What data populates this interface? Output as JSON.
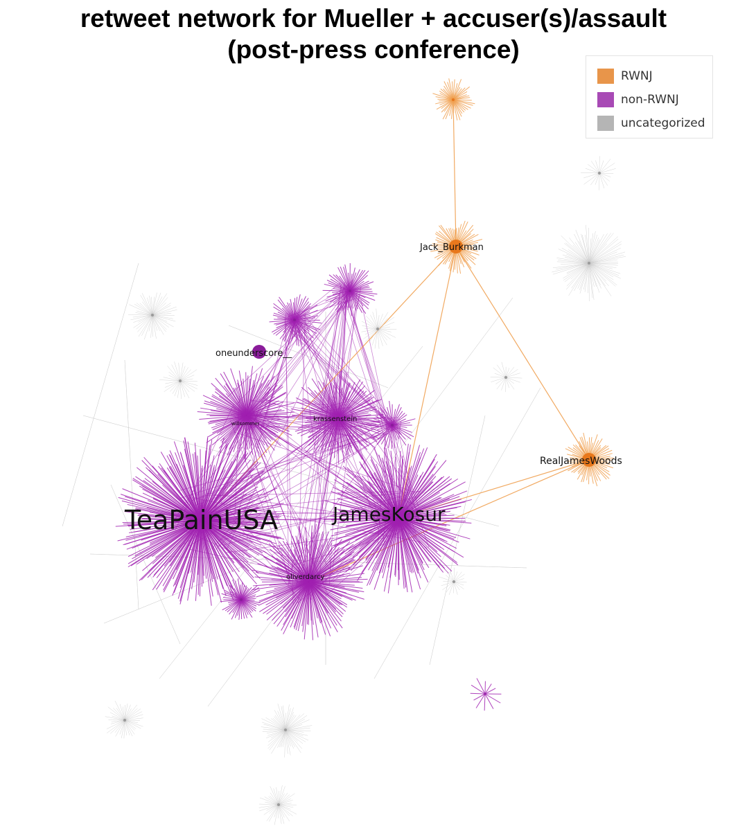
{
  "title": {
    "line1": "retweet network for Mueller + accuser(s)/assault",
    "line2": "(post-press conference)"
  },
  "legend": [
    {
      "label": "RWNJ",
      "color": "#e8954a"
    },
    {
      "label": "non-RWNJ",
      "color": "#a84ab5"
    },
    {
      "label": "uncategorized",
      "color": "#b5b5b5"
    }
  ],
  "colors": {
    "rwnj_edge": "#f0a050",
    "rwnj_node": "#e8781c",
    "nonrwnj_edge": "#a020b0",
    "nonrwnj_node": "#8a1c9a",
    "uncat_edge": "#c8c8c8",
    "uncat_node": "#9a9a9a"
  },
  "hubs": [
    {
      "id": "TeaPainUSA",
      "label": "TeaPainUSA",
      "group": "non-RWNJ"
    },
    {
      "id": "JamesKosur",
      "label": "JamesKosur",
      "group": "non-RWNJ"
    },
    {
      "id": "oliverdarcy",
      "label": "oliverdarcy",
      "group": "non-RWNJ"
    },
    {
      "id": "krassenstein",
      "label": "krassenstein",
      "group": "non-RWNJ"
    },
    {
      "id": "willsommer",
      "label": "willsommer",
      "group": "non-RWNJ"
    },
    {
      "id": "oneunderscore__",
      "label": "oneunderscore__",
      "group": "non-RWNJ"
    },
    {
      "id": "Jack_Burkman",
      "label": "Jack_Burkman",
      "group": "RWNJ"
    },
    {
      "id": "RealJamesWoods",
      "label": "RealJamesWoods",
      "group": "RWNJ"
    },
    {
      "id": "top_rwnj",
      "label": "",
      "group": "RWNJ"
    },
    {
      "id": "small_purple_1",
      "label": "",
      "group": "non-RWNJ"
    },
    {
      "id": "small_purple_2",
      "label": "",
      "group": "non-RWNJ"
    },
    {
      "id": "small_purple_3",
      "label": "",
      "group": "non-RWNJ"
    },
    {
      "id": "small_purple_4",
      "label": "",
      "group": "non-RWNJ"
    },
    {
      "id": "small_purple_5",
      "label": "",
      "group": "non-RWNJ"
    },
    {
      "id": "gray_1",
      "label": "",
      "group": "uncategorized"
    },
    {
      "id": "gray_2",
      "label": "",
      "group": "uncategorized"
    },
    {
      "id": "gray_3",
      "label": "",
      "group": "uncategorized"
    },
    {
      "id": "gray_4",
      "label": "",
      "group": "uncategorized"
    },
    {
      "id": "gray_5",
      "label": "",
      "group": "uncategorized"
    },
    {
      "id": "gray_6",
      "label": "",
      "group": "uncategorized"
    },
    {
      "id": "gray_7",
      "label": "",
      "group": "uncategorized"
    },
    {
      "id": "gray_8",
      "label": "",
      "group": "uncategorized"
    },
    {
      "id": "gray_9",
      "label": "",
      "group": "uncategorized"
    },
    {
      "id": "gray_10",
      "label": "",
      "group": "uncategorized"
    }
  ],
  "links": [
    {
      "source": "top_rwnj",
      "target": "Jack_Burkman",
      "group": "RWNJ"
    },
    {
      "source": "Jack_Burkman",
      "target": "RealJamesWoods",
      "group": "RWNJ"
    },
    {
      "source": "Jack_Burkman",
      "target": "TeaPainUSA",
      "group": "RWNJ"
    },
    {
      "source": "Jack_Burkman",
      "target": "JamesKosur",
      "group": "RWNJ"
    },
    {
      "source": "RealJamesWoods",
      "target": "JamesKosur",
      "group": "RWNJ"
    },
    {
      "source": "RealJamesWoods",
      "target": "oliverdarcy",
      "group": "RWNJ"
    },
    {
      "source": "TeaPainUSA",
      "target": "JamesKosur",
      "group": "non-RWNJ"
    },
    {
      "source": "TeaPainUSA",
      "target": "oliverdarcy",
      "group": "non-RWNJ"
    },
    {
      "source": "TeaPainUSA",
      "target": "willsommer",
      "group": "non-RWNJ"
    },
    {
      "source": "TeaPainUSA",
      "target": "krassenstein",
      "group": "non-RWNJ"
    },
    {
      "source": "JamesKosur",
      "target": "oliverdarcy",
      "group": "non-RWNJ"
    },
    {
      "source": "JamesKosur",
      "target": "krassenstein",
      "group": "non-RWNJ"
    },
    {
      "source": "JamesKosur",
      "target": "willsommer",
      "group": "non-RWNJ"
    },
    {
      "source": "willsommer",
      "target": "krassenstein",
      "group": "non-RWNJ"
    },
    {
      "source": "willsommer",
      "target": "oliverdarcy",
      "group": "non-RWNJ"
    },
    {
      "source": "krassenstein",
      "target": "oliverdarcy",
      "group": "non-RWNJ"
    }
  ]
}
